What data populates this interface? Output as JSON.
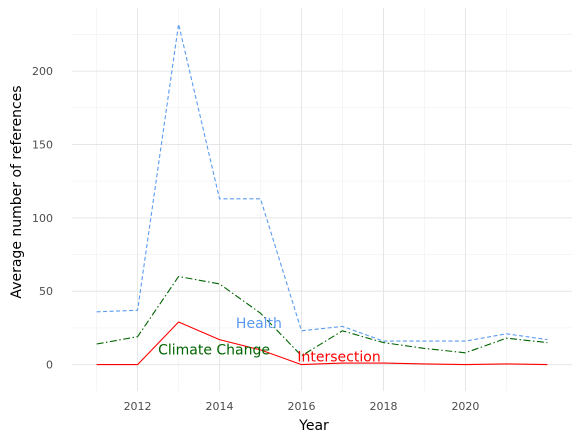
{
  "chart_data": {
    "type": "line",
    "title": "",
    "xlabel": "Year",
    "ylabel": "Average number of references",
    "xlim": [
      2010.4,
      2022.6
    ],
    "ylim": [
      -18,
      243
    ],
    "x_ticks": [
      2012,
      2014,
      2016,
      2018,
      2020
    ],
    "x_tick_labels": [
      "2012",
      "2014",
      "2016",
      "2018",
      "2020"
    ],
    "y_ticks": [
      0,
      50,
      100,
      150,
      200
    ],
    "y_tick_labels": [
      "0",
      "50",
      "100",
      "150",
      "200"
    ],
    "x_minor_ticks": [
      2011,
      2013,
      2015,
      2017,
      2019,
      2021
    ],
    "y_minor_ticks": [
      25,
      75,
      125,
      175,
      225
    ],
    "grid": true,
    "legend": "none",
    "x": [
      2011,
      2012,
      2013,
      2014,
      2015,
      2016,
      2017,
      2018,
      2019,
      2020,
      2021,
      2022
    ],
    "series": [
      {
        "name": "Health",
        "color": "#5b9bef",
        "line_style": "dashed",
        "values": [
          36,
          37,
          232,
          113,
          113,
          23,
          26,
          16,
          16,
          16,
          21,
          17
        ]
      },
      {
        "name": "Climate Change",
        "color": "#006400",
        "line_style": "dashdot",
        "values": [
          14,
          19,
          60,
          55,
          35,
          6,
          23,
          15,
          11,
          8,
          18,
          15
        ]
      },
      {
        "name": "Intersection",
        "color": "#ff0000",
        "line_style": "solid",
        "values": [
          0,
          0,
          29,
          17,
          10,
          0,
          1,
          1,
          0.5,
          0,
          0.5,
          0
        ]
      }
    ],
    "annotations": [
      {
        "text": "Health",
        "x": 2014.4,
        "y": 25,
        "color": "#5b9bef"
      },
      {
        "text": "Climate Change",
        "x": 2012.5,
        "y": 7,
        "color": "#006400"
      },
      {
        "text": "Intersection",
        "x": 2015.9,
        "y": 2,
        "color": "#ff0000"
      }
    ]
  }
}
